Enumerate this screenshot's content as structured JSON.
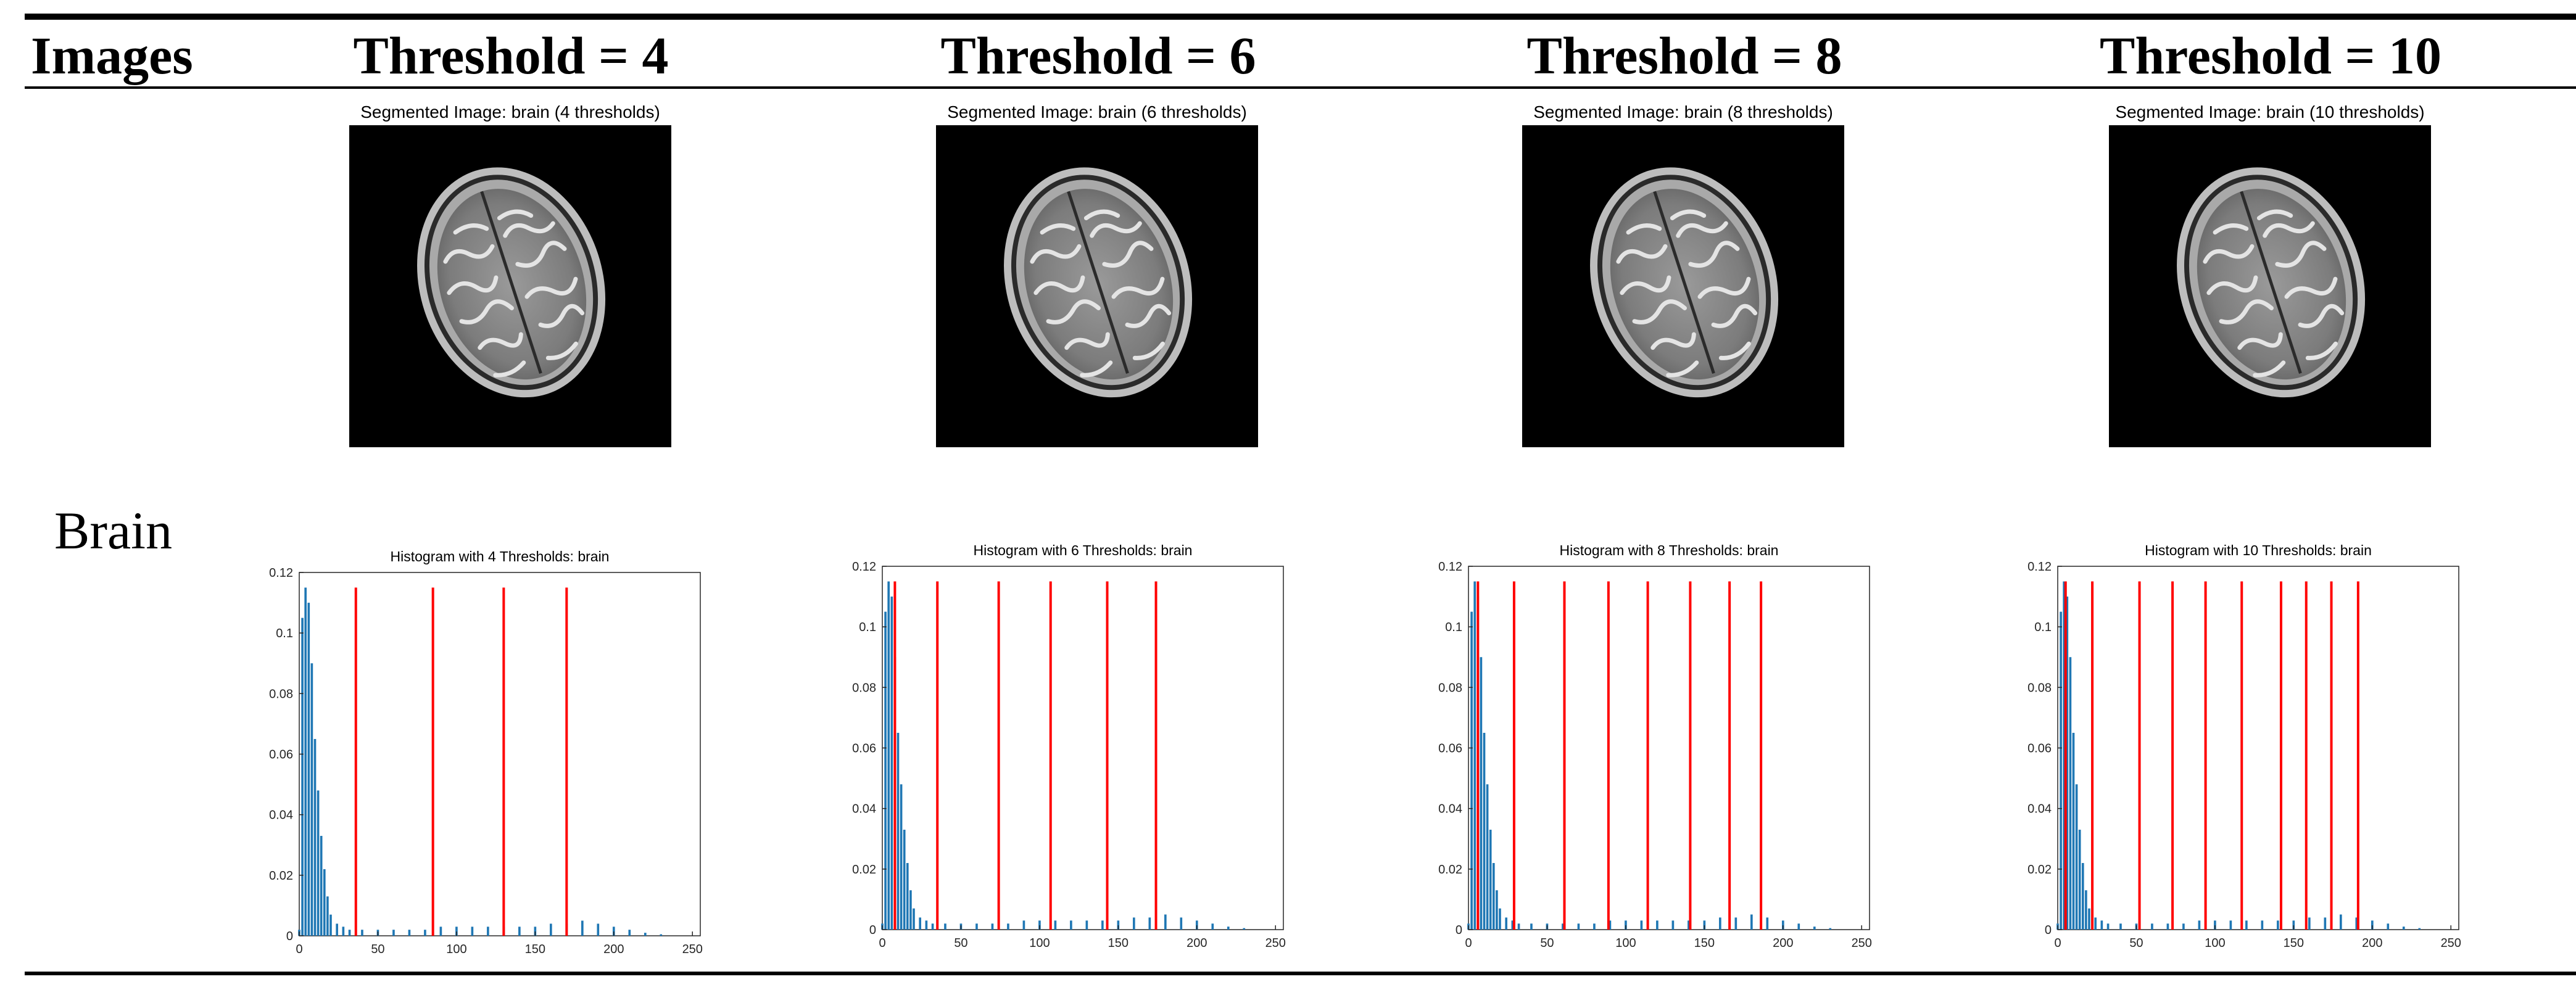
{
  "table": {
    "header_images": "Images",
    "row_label": "Brain"
  },
  "colors": {
    "bar": "#1f77b4",
    "threshold": "#ff0000",
    "axis": "#262626"
  },
  "columns": [
    {
      "header": "Threshold = 4",
      "seg_title": "Segmented Image: brain (4 thresholds)"
    },
    {
      "header": "Threshold = 6",
      "seg_title": "Segmented Image: brain (6 thresholds)"
    },
    {
      "header": "Threshold = 8",
      "seg_title": "Segmented Image: brain (8 thresholds)"
    },
    {
      "header": "Threshold = 10",
      "seg_title": "Segmented Image: brain (10 thresholds)"
    }
  ],
  "chart_data": [
    {
      "type": "bar",
      "title": "Histogram with 4 Thresholds: brain",
      "xlabel": "",
      "ylabel": "",
      "xlim": [
        0,
        255
      ],
      "ylim": [
        0,
        0.12
      ],
      "xticks": [
        0,
        50,
        100,
        150,
        200,
        250
      ],
      "yticks": [
        0,
        0.02,
        0.04,
        0.06,
        0.08,
        0.1,
        0.12
      ],
      "ytick_labels": [
        "0",
        "0.02",
        "0.04",
        "0.06",
        "0.08",
        "0.1",
        "0.12"
      ],
      "histogram_x": [
        0,
        2,
        4,
        6,
        8,
        10,
        12,
        14,
        16,
        18,
        20,
        24,
        28,
        32,
        40,
        50,
        60,
        70,
        80,
        90,
        100,
        110,
        120,
        130,
        140,
        150,
        160,
        170,
        180,
        190,
        200,
        210,
        220,
        230
      ],
      "histogram_y": [
        0.002,
        0.105,
        0.115,
        0.11,
        0.09,
        0.065,
        0.048,
        0.033,
        0.022,
        0.013,
        0.007,
        0.004,
        0.003,
        0.002,
        0.002,
        0.002,
        0.002,
        0.002,
        0.002,
        0.003,
        0.003,
        0.003,
        0.003,
        0.003,
        0.003,
        0.003,
        0.004,
        0.004,
        0.005,
        0.004,
        0.003,
        0.002,
        0.001,
        0.0005
      ],
      "thresholds": [
        36,
        85,
        130,
        170
      ]
    },
    {
      "type": "bar",
      "title": "Histogram with 6 Thresholds: brain",
      "xlabel": "",
      "ylabel": "",
      "xlim": [
        0,
        255
      ],
      "ylim": [
        0,
        0.12
      ],
      "xticks": [
        0,
        50,
        100,
        150,
        200,
        250
      ],
      "yticks": [
        0,
        0.02,
        0.04,
        0.06,
        0.08,
        0.1,
        0.12
      ],
      "ytick_labels": [
        "0",
        "0.02",
        "0.04",
        "0.06",
        "0.08",
        "0.1",
        "0.12"
      ],
      "histogram_x": [
        0,
        2,
        4,
        6,
        8,
        10,
        12,
        14,
        16,
        18,
        20,
        24,
        28,
        32,
        40,
        50,
        60,
        70,
        80,
        90,
        100,
        110,
        120,
        130,
        140,
        150,
        160,
        170,
        180,
        190,
        200,
        210,
        220,
        230
      ],
      "histogram_y": [
        0.002,
        0.105,
        0.115,
        0.11,
        0.09,
        0.065,
        0.048,
        0.033,
        0.022,
        0.013,
        0.007,
        0.004,
        0.003,
        0.002,
        0.002,
        0.002,
        0.002,
        0.002,
        0.002,
        0.003,
        0.003,
        0.003,
        0.003,
        0.003,
        0.003,
        0.003,
        0.004,
        0.004,
        0.005,
        0.004,
        0.003,
        0.002,
        0.001,
        0.0005
      ],
      "thresholds": [
        8,
        35,
        74,
        107,
        143,
        174
      ]
    },
    {
      "type": "bar",
      "title": "Histogram with 8 Thresholds: brain",
      "xlabel": "",
      "ylabel": "",
      "xlim": [
        0,
        255
      ],
      "ylim": [
        0,
        0.12
      ],
      "xticks": [
        0,
        50,
        100,
        150,
        200,
        250
      ],
      "yticks": [
        0,
        0.02,
        0.04,
        0.06,
        0.08,
        0.1,
        0.12
      ],
      "ytick_labels": [
        "0",
        "0.02",
        "0.04",
        "0.06",
        "0.08",
        "0.1",
        "0.12"
      ],
      "histogram_x": [
        0,
        2,
        4,
        6,
        8,
        10,
        12,
        14,
        16,
        18,
        20,
        24,
        28,
        32,
        40,
        50,
        60,
        70,
        80,
        90,
        100,
        110,
        120,
        130,
        140,
        150,
        160,
        170,
        180,
        190,
        200,
        210,
        220,
        230
      ],
      "histogram_y": [
        0.002,
        0.105,
        0.115,
        0.11,
        0.09,
        0.065,
        0.048,
        0.033,
        0.022,
        0.013,
        0.007,
        0.004,
        0.003,
        0.002,
        0.002,
        0.002,
        0.002,
        0.002,
        0.002,
        0.003,
        0.003,
        0.003,
        0.003,
        0.003,
        0.003,
        0.003,
        0.004,
        0.004,
        0.005,
        0.004,
        0.003,
        0.002,
        0.001,
        0.0005
      ],
      "thresholds": [
        6,
        29,
        61,
        89,
        114,
        141,
        166,
        186
      ]
    },
    {
      "type": "bar",
      "title": "Histogram with 10 Thresholds: brain",
      "xlabel": "",
      "ylabel": "",
      "xlim": [
        0,
        255
      ],
      "ylim": [
        0,
        0.12
      ],
      "xticks": [
        0,
        50,
        100,
        150,
        200,
        250
      ],
      "yticks": [
        0,
        0.02,
        0.04,
        0.06,
        0.08,
        0.1,
        0.12
      ],
      "ytick_labels": [
        "0",
        "0.02",
        "0.04",
        "0.06",
        "0.08",
        "0.1",
        "0.12"
      ],
      "histogram_x": [
        0,
        2,
        4,
        6,
        8,
        10,
        12,
        14,
        16,
        18,
        20,
        24,
        28,
        32,
        40,
        50,
        60,
        70,
        80,
        90,
        100,
        110,
        120,
        130,
        140,
        150,
        160,
        170,
        180,
        190,
        200,
        210,
        220,
        230
      ],
      "histogram_y": [
        0.002,
        0.105,
        0.115,
        0.11,
        0.09,
        0.065,
        0.048,
        0.033,
        0.022,
        0.013,
        0.007,
        0.004,
        0.003,
        0.002,
        0.002,
        0.002,
        0.002,
        0.002,
        0.002,
        0.003,
        0.003,
        0.003,
        0.003,
        0.003,
        0.003,
        0.003,
        0.004,
        0.004,
        0.005,
        0.004,
        0.003,
        0.002,
        0.001,
        0.0005
      ],
      "thresholds": [
        5,
        22,
        52,
        73,
        94,
        117,
        142,
        158,
        174,
        191
      ]
    }
  ]
}
